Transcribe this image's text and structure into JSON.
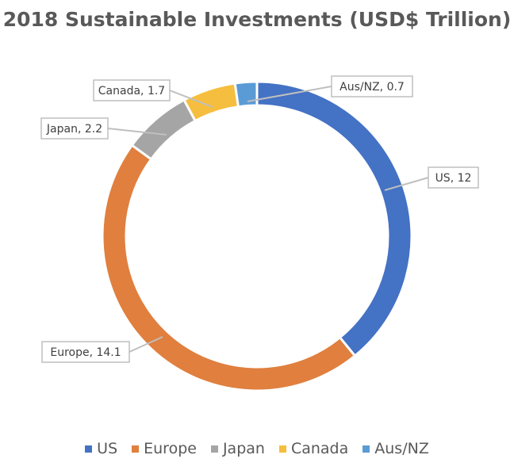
{
  "chart_data": {
    "type": "pie",
    "variant": "donut",
    "title": "2018 Sustainable Investments (USD$ Trillion)",
    "categories": [
      "US",
      "Europe",
      "Japan",
      "Canada",
      "Aus/NZ"
    ],
    "values": [
      12,
      14.1,
      2.2,
      1.7,
      0.7
    ],
    "colors": [
      "#4472C4",
      "#E07F3E",
      "#A5A5A5",
      "#F6BE3E",
      "#5B9BD5"
    ],
    "data_labels": [
      "US, 12",
      "Europe, 14.1",
      "Japan, 2.2",
      "Canada, 1.7",
      "Aus/NZ, 0.7"
    ],
    "legend_position": "bottom"
  }
}
